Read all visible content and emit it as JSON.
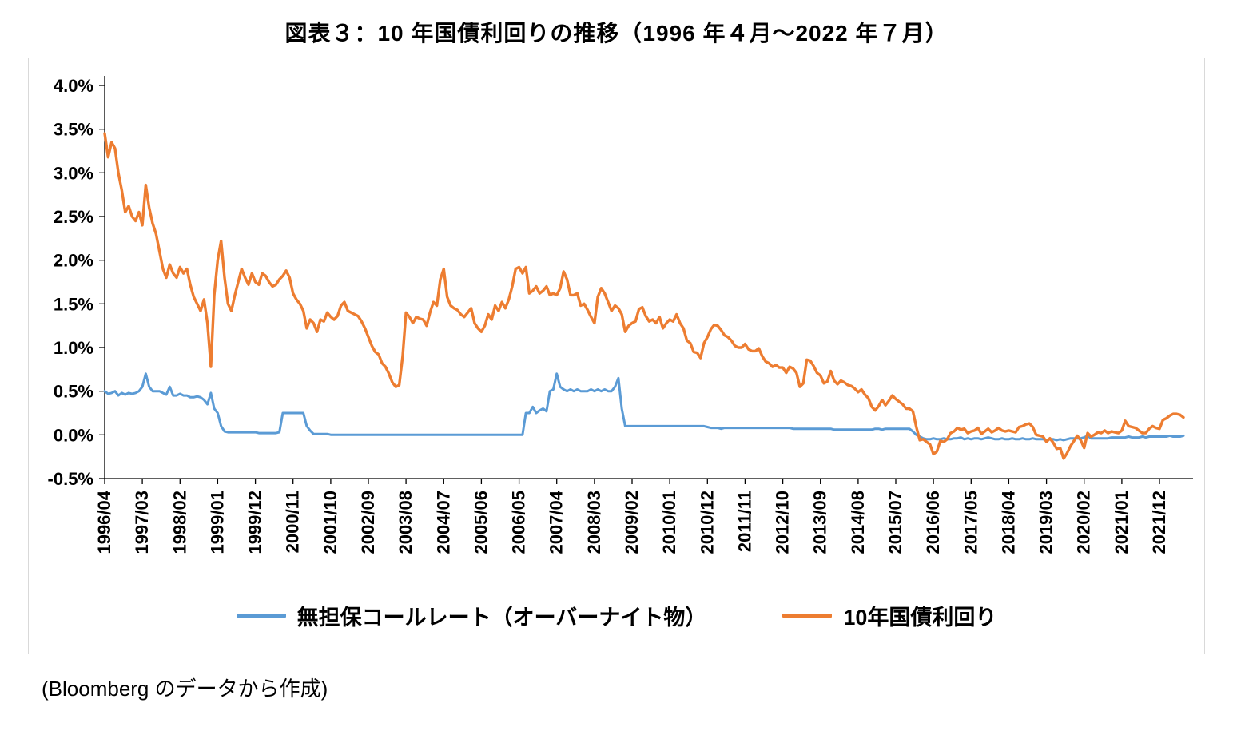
{
  "title": "図表３：10 年国債利回りの推移（1996 年４月～2022 年７月）",
  "source_note": "(Bloomberg のデータから作成)",
  "chart_data": {
    "type": "line",
    "frequency": "monthly",
    "x_start": "1996/04",
    "x_end": "2022/07",
    "x_tick_interval_months": 11,
    "x_tick_labels": [
      "1996/04",
      "1997/03",
      "1998/02",
      "1999/01",
      "1999/12",
      "2000/11",
      "2001/10",
      "2002/09",
      "2003/08",
      "2004/07",
      "2005/06",
      "2006/05",
      "2007/04",
      "2008/03",
      "2009/02",
      "2010/01",
      "2010/12",
      "2011/11",
      "2012/10",
      "2013/09",
      "2014/08",
      "2015/07",
      "2016/06",
      "2017/05",
      "2018/04",
      "2019/03",
      "2020/02",
      "2021/01",
      "2021/12"
    ],
    "ylim": [
      -0.5,
      4.0
    ],
    "y_tick_step": 0.5,
    "y_tick_labels": [
      "4.0%",
      "3.5%",
      "3.0%",
      "2.5%",
      "2.0%",
      "1.5%",
      "1.0%",
      "0.5%",
      "0.0%",
      "-0.5%"
    ],
    "grid": false,
    "legend_position": "bottom",
    "series": [
      {
        "name": "無担保コールレート（オーバーナイト物）",
        "color": "#5B9BD5",
        "values": [
          0.5,
          0.47,
          0.48,
          0.5,
          0.45,
          0.48,
          0.46,
          0.48,
          0.47,
          0.48,
          0.5,
          0.55,
          0.7,
          0.55,
          0.5,
          0.5,
          0.5,
          0.48,
          0.46,
          0.55,
          0.45,
          0.45,
          0.47,
          0.45,
          0.45,
          0.43,
          0.43,
          0.44,
          0.43,
          0.4,
          0.35,
          0.48,
          0.3,
          0.25,
          0.1,
          0.04,
          0.03,
          0.03,
          0.03,
          0.03,
          0.03,
          0.03,
          0.03,
          0.03,
          0.03,
          0.02,
          0.02,
          0.02,
          0.02,
          0.02,
          0.02,
          0.03,
          0.25,
          0.25,
          0.25,
          0.25,
          0.25,
          0.25,
          0.25,
          0.1,
          0.05,
          0.01,
          0.01,
          0.01,
          0.01,
          0.01,
          0.001,
          0.001,
          0.001,
          0.001,
          0.001,
          0.001,
          0.001,
          0.001,
          0.001,
          0.001,
          0.001,
          0.001,
          0.001,
          0.001,
          0.001,
          0.001,
          0.001,
          0.001,
          0.001,
          0.001,
          0.001,
          0.001,
          0.001,
          0.001,
          0.001,
          0.001,
          0.001,
          0.001,
          0.001,
          0.001,
          0.001,
          0.001,
          0.001,
          0.001,
          0.001,
          0.001,
          0.001,
          0.001,
          0.001,
          0.001,
          0.001,
          0.001,
          0.001,
          0.001,
          0.001,
          0.001,
          0.001,
          0.001,
          0.001,
          0.001,
          0.001,
          0.001,
          0.001,
          0.001,
          0.001,
          0.001,
          0.001,
          0.25,
          0.25,
          0.32,
          0.25,
          0.28,
          0.3,
          0.27,
          0.5,
          0.52,
          0.7,
          0.55,
          0.52,
          0.5,
          0.52,
          0.5,
          0.52,
          0.5,
          0.5,
          0.5,
          0.52,
          0.5,
          0.52,
          0.5,
          0.52,
          0.5,
          0.5,
          0.55,
          0.65,
          0.3,
          0.1,
          0.1,
          0.1,
          0.1,
          0.1,
          0.1,
          0.1,
          0.1,
          0.1,
          0.1,
          0.1,
          0.1,
          0.1,
          0.1,
          0.1,
          0.1,
          0.1,
          0.1,
          0.1,
          0.1,
          0.1,
          0.1,
          0.1,
          0.1,
          0.09,
          0.08,
          0.08,
          0.08,
          0.07,
          0.08,
          0.08,
          0.08,
          0.08,
          0.08,
          0.08,
          0.08,
          0.08,
          0.08,
          0.08,
          0.08,
          0.08,
          0.08,
          0.08,
          0.08,
          0.08,
          0.08,
          0.08,
          0.08,
          0.08,
          0.07,
          0.07,
          0.07,
          0.07,
          0.07,
          0.07,
          0.07,
          0.07,
          0.07,
          0.07,
          0.07,
          0.07,
          0.06,
          0.06,
          0.06,
          0.06,
          0.06,
          0.06,
          0.06,
          0.06,
          0.06,
          0.06,
          0.06,
          0.06,
          0.07,
          0.07,
          0.06,
          0.07,
          0.07,
          0.07,
          0.07,
          0.07,
          0.07,
          0.07,
          0.07,
          0.04,
          0.0,
          -0.02,
          -0.04,
          -0.05,
          -0.05,
          -0.04,
          -0.05,
          -0.05,
          -0.04,
          -0.05,
          -0.05,
          -0.04,
          -0.04,
          -0.03,
          -0.05,
          -0.04,
          -0.05,
          -0.04,
          -0.04,
          -0.05,
          -0.04,
          -0.03,
          -0.04,
          -0.05,
          -0.05,
          -0.04,
          -0.05,
          -0.05,
          -0.04,
          -0.05,
          -0.05,
          -0.04,
          -0.05,
          -0.05,
          -0.04,
          -0.05,
          -0.05,
          -0.05,
          -0.06,
          -0.05,
          -0.05,
          -0.06,
          -0.05,
          -0.06,
          -0.05,
          -0.04,
          -0.04,
          -0.04,
          -0.04,
          -0.03,
          -0.01,
          -0.04,
          -0.04,
          -0.04,
          -0.04,
          -0.04,
          -0.04,
          -0.03,
          -0.03,
          -0.03,
          -0.03,
          -0.03,
          -0.02,
          -0.03,
          -0.03,
          -0.03,
          -0.02,
          -0.03,
          -0.02,
          -0.02,
          -0.02,
          -0.02,
          -0.02,
          -0.02,
          -0.01,
          -0.02,
          -0.02,
          -0.02,
          -0.01
        ]
      },
      {
        "name": "10年国債利回り",
        "color": "#ED7D31",
        "values": [
          3.45,
          3.18,
          3.35,
          3.28,
          3.0,
          2.8,
          2.55,
          2.62,
          2.5,
          2.45,
          2.55,
          2.4,
          2.86,
          2.6,
          2.42,
          2.3,
          2.1,
          1.9,
          1.8,
          1.95,
          1.85,
          1.8,
          1.92,
          1.85,
          1.9,
          1.72,
          1.58,
          1.5,
          1.42,
          1.55,
          1.28,
          0.78,
          1.6,
          2.0,
          2.22,
          1.8,
          1.5,
          1.42,
          1.6,
          1.75,
          1.9,
          1.8,
          1.72,
          1.85,
          1.75,
          1.72,
          1.85,
          1.82,
          1.75,
          1.7,
          1.72,
          1.78,
          1.82,
          1.88,
          1.8,
          1.62,
          1.55,
          1.5,
          1.42,
          1.22,
          1.32,
          1.28,
          1.18,
          1.32,
          1.3,
          1.4,
          1.35,
          1.32,
          1.36,
          1.48,
          1.52,
          1.42,
          1.4,
          1.38,
          1.36,
          1.3,
          1.22,
          1.12,
          1.02,
          0.95,
          0.92,
          0.82,
          0.78,
          0.7,
          0.6,
          0.55,
          0.57,
          0.9,
          1.4,
          1.35,
          1.28,
          1.35,
          1.33,
          1.32,
          1.25,
          1.4,
          1.52,
          1.48,
          1.78,
          1.9,
          1.58,
          1.48,
          1.45,
          1.43,
          1.38,
          1.35,
          1.4,
          1.45,
          1.28,
          1.22,
          1.18,
          1.25,
          1.38,
          1.32,
          1.48,
          1.42,
          1.52,
          1.45,
          1.55,
          1.7,
          1.9,
          1.92,
          1.85,
          1.92,
          1.62,
          1.65,
          1.7,
          1.62,
          1.65,
          1.7,
          1.6,
          1.62,
          1.6,
          1.68,
          1.87,
          1.78,
          1.6,
          1.6,
          1.62,
          1.48,
          1.5,
          1.43,
          1.35,
          1.28,
          1.58,
          1.68,
          1.62,
          1.52,
          1.42,
          1.48,
          1.45,
          1.38,
          1.18,
          1.25,
          1.28,
          1.3,
          1.44,
          1.46,
          1.36,
          1.3,
          1.32,
          1.28,
          1.35,
          1.22,
          1.28,
          1.32,
          1.3,
          1.38,
          1.28,
          1.22,
          1.08,
          1.05,
          0.95,
          0.94,
          0.88,
          1.05,
          1.12,
          1.21,
          1.26,
          1.25,
          1.2,
          1.14,
          1.12,
          1.08,
          1.02,
          1.0,
          1.0,
          1.04,
          0.98,
          0.96,
          0.96,
          0.99,
          0.9,
          0.84,
          0.82,
          0.78,
          0.8,
          0.77,
          0.77,
          0.71,
          0.78,
          0.76,
          0.71,
          0.55,
          0.59,
          0.86,
          0.85,
          0.79,
          0.71,
          0.68,
          0.59,
          0.61,
          0.73,
          0.62,
          0.58,
          0.62,
          0.6,
          0.57,
          0.56,
          0.53,
          0.49,
          0.52,
          0.46,
          0.42,
          0.32,
          0.28,
          0.33,
          0.4,
          0.34,
          0.39,
          0.45,
          0.41,
          0.38,
          0.35,
          0.3,
          0.3,
          0.27,
          0.09,
          -0.06,
          -0.05,
          -0.08,
          -0.11,
          -0.22,
          -0.19,
          -0.07,
          -0.08,
          -0.05,
          0.02,
          0.04,
          0.08,
          0.06,
          0.07,
          0.02,
          0.04,
          0.05,
          0.08,
          0.01,
          0.04,
          0.07,
          0.03,
          0.05,
          0.08,
          0.05,
          0.04,
          0.05,
          0.04,
          0.03,
          0.09,
          0.1,
          0.12,
          0.13,
          0.09,
          0.0,
          -0.01,
          -0.02,
          -0.08,
          -0.04,
          -0.09,
          -0.16,
          -0.15,
          -0.27,
          -0.21,
          -0.13,
          -0.07,
          -0.01,
          -0.06,
          -0.15,
          0.02,
          -0.02,
          0.0,
          0.03,
          0.02,
          0.05,
          0.02,
          0.04,
          0.03,
          0.02,
          0.05,
          0.16,
          0.1,
          0.09,
          0.08,
          0.05,
          0.02,
          0.02,
          0.07,
          0.1,
          0.08,
          0.07,
          0.17,
          0.19,
          0.22,
          0.24,
          0.24,
          0.23,
          0.2
        ]
      }
    ]
  }
}
